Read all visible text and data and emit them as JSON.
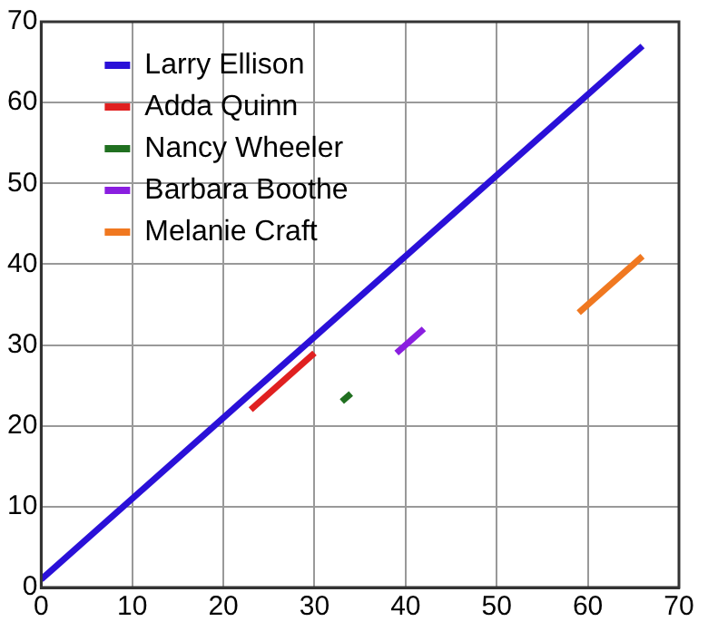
{
  "chart_data": {
    "type": "line",
    "xlim": [
      0,
      70
    ],
    "ylim": [
      0,
      70
    ],
    "xticks": [
      0,
      10,
      20,
      30,
      40,
      50,
      60,
      70
    ],
    "yticks": [
      0,
      10,
      20,
      30,
      40,
      50,
      60,
      70
    ],
    "grid": true,
    "legend": "top left",
    "marker": "none",
    "line_style": "solid",
    "series": [
      {
        "name": "Larry Ellison",
        "color": "#2a10d8",
        "x": [
          0,
          66
        ],
        "values": [
          1,
          67
        ]
      },
      {
        "name": "Adda Quinn",
        "color": "#e02020",
        "x": [
          23,
          30
        ],
        "values": [
          22,
          29
        ]
      },
      {
        "name": "Nancy Wheeler",
        "color": "#207020",
        "x": [
          33,
          34
        ],
        "values": [
          23,
          24
        ]
      },
      {
        "name": "Barbara Boothe",
        "color": "#8a1ee0",
        "x": [
          39,
          42
        ],
        "values": [
          29,
          32
        ]
      },
      {
        "name": "Melanie Craft",
        "color": "#f07820",
        "x": [
          59,
          66
        ],
        "values": [
          34,
          41
        ]
      }
    ]
  }
}
